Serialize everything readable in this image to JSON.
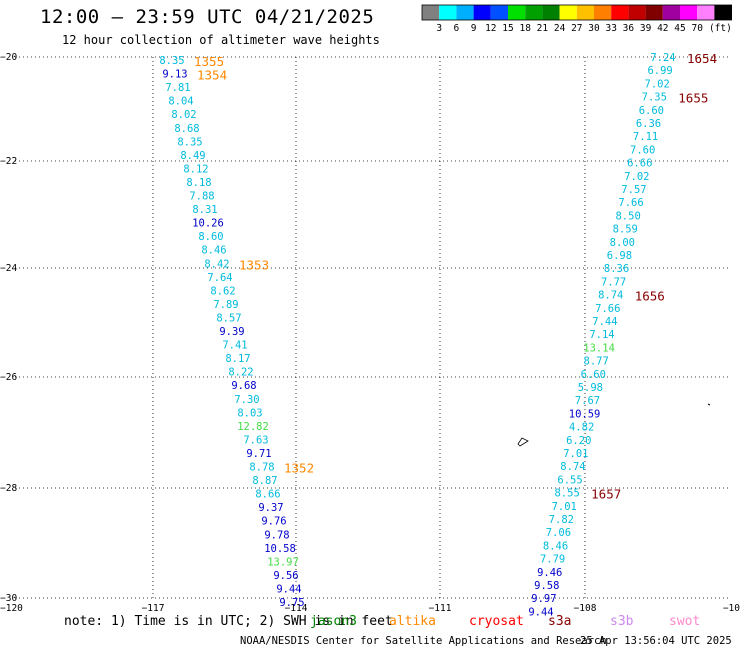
{
  "header": {
    "title": "12:00 — 23:59 UTC 04/21/2025",
    "subtitle": "12 hour collection of altimeter wave heights"
  },
  "colorbar": {
    "colors": [
      "#808080",
      "#00ffff",
      "#00b0ff",
      "#0000ff",
      "#0050ff",
      "#00e000",
      "#00a000",
      "#008000",
      "#ffff00",
      "#ffc000",
      "#ff8000",
      "#ff0000",
      "#c00000",
      "#800000",
      "#a000a0",
      "#ff00ff",
      "#ff80ff",
      "#000000"
    ],
    "labels": [
      "3",
      "6",
      "9",
      "12",
      "15",
      "18",
      "21",
      "24",
      "27",
      "30",
      "33",
      "36",
      "39",
      "42",
      "45",
      "70"
    ],
    "unit": "(ft)"
  },
  "axes": {
    "x_ticks": [
      "−120",
      "−117",
      "−114",
      "−111",
      "−108",
      "−10"
    ],
    "y_ticks": [
      "−20",
      "−22",
      "−24",
      "−26",
      "−28",
      "−30"
    ]
  },
  "colors": {
    "cyan": "#00bbdd",
    "blue": "#0000cc",
    "green": "#44dd44",
    "orange": "#ff8800",
    "darkred": "#880000"
  },
  "track_west": {
    "values": [
      {
        "v": "8.35",
        "c": "cyan"
      },
      {
        "v": "9.13",
        "c": "blue"
      },
      {
        "v": "7.81",
        "c": "cyan"
      },
      {
        "v": "8.04",
        "c": "cyan"
      },
      {
        "v": "8.02",
        "c": "cyan"
      },
      {
        "v": "8.68",
        "c": "cyan"
      },
      {
        "v": "8.35",
        "c": "cyan"
      },
      {
        "v": "8.49",
        "c": "cyan"
      },
      {
        "v": "8.12",
        "c": "cyan"
      },
      {
        "v": "8.18",
        "c": "cyan"
      },
      {
        "v": "7.88",
        "c": "cyan"
      },
      {
        "v": "8.31",
        "c": "cyan"
      },
      {
        "v": "10.26",
        "c": "blue"
      },
      {
        "v": "8.60",
        "c": "cyan"
      },
      {
        "v": "8.46",
        "c": "cyan"
      },
      {
        "v": "8.42",
        "c": "cyan"
      },
      {
        "v": "7.64",
        "c": "cyan"
      },
      {
        "v": "8.62",
        "c": "cyan"
      },
      {
        "v": "7.89",
        "c": "cyan"
      },
      {
        "v": "8.57",
        "c": "cyan"
      },
      {
        "v": "9.39",
        "c": "blue"
      },
      {
        "v": "7.41",
        "c": "cyan"
      },
      {
        "v": "8.17",
        "c": "cyan"
      },
      {
        "v": "8.22",
        "c": "cyan"
      },
      {
        "v": "9.68",
        "c": "blue"
      },
      {
        "v": "7.30",
        "c": "cyan"
      },
      {
        "v": "8.03",
        "c": "cyan"
      },
      {
        "v": "12.82",
        "c": "green"
      },
      {
        "v": "7.63",
        "c": "cyan"
      },
      {
        "v": "9.71",
        "c": "blue"
      },
      {
        "v": "8.78",
        "c": "cyan"
      },
      {
        "v": "8.87",
        "c": "cyan"
      },
      {
        "v": "8.66",
        "c": "cyan"
      },
      {
        "v": "9.37",
        "c": "blue"
      },
      {
        "v": "9.76",
        "c": "blue"
      },
      {
        "v": "9.78",
        "c": "blue"
      },
      {
        "v": "10.58",
        "c": "blue"
      },
      {
        "v": "13.97",
        "c": "green"
      },
      {
        "v": "9.56",
        "c": "blue"
      },
      {
        "v": "9.44",
        "c": "blue"
      },
      {
        "v": "9.75",
        "c": "blue"
      }
    ],
    "time_labels": [
      {
        "t": "1355",
        "c": "orange",
        "i": 0
      },
      {
        "t": "1354",
        "c": "orange",
        "i": 1
      },
      {
        "t": "1353",
        "c": "orange",
        "i": 15
      },
      {
        "t": "1352",
        "c": "orange",
        "i": 30
      }
    ]
  },
  "track_east": {
    "values": [
      {
        "v": "7.24",
        "c": "cyan"
      },
      {
        "v": "6.99",
        "c": "cyan"
      },
      {
        "v": "7.02",
        "c": "cyan"
      },
      {
        "v": "7.35",
        "c": "cyan"
      },
      {
        "v": "6.60",
        "c": "cyan"
      },
      {
        "v": "6.36",
        "c": "cyan"
      },
      {
        "v": "7.11",
        "c": "cyan"
      },
      {
        "v": "7.60",
        "c": "cyan"
      },
      {
        "v": "6.66",
        "c": "cyan"
      },
      {
        "v": "7.02",
        "c": "cyan"
      },
      {
        "v": "7.57",
        "c": "cyan"
      },
      {
        "v": "7.66",
        "c": "cyan"
      },
      {
        "v": "8.50",
        "c": "cyan"
      },
      {
        "v": "8.59",
        "c": "cyan"
      },
      {
        "v": "8.00",
        "c": "cyan"
      },
      {
        "v": "6.98",
        "c": "cyan"
      },
      {
        "v": "8.36",
        "c": "cyan"
      },
      {
        "v": "7.77",
        "c": "cyan"
      },
      {
        "v": "8.74",
        "c": "cyan"
      },
      {
        "v": "7.66",
        "c": "cyan"
      },
      {
        "v": "7.44",
        "c": "cyan"
      },
      {
        "v": "7.14",
        "c": "cyan"
      },
      {
        "v": "13.14",
        "c": "green"
      },
      {
        "v": "8.77",
        "c": "cyan"
      },
      {
        "v": "6.60",
        "c": "cyan"
      },
      {
        "v": "5.98",
        "c": "cyan"
      },
      {
        "v": "7.67",
        "c": "cyan"
      },
      {
        "v": "10.59",
        "c": "blue"
      },
      {
        "v": "4.82",
        "c": "cyan"
      },
      {
        "v": "6.20",
        "c": "cyan"
      },
      {
        "v": "7.01",
        "c": "cyan"
      },
      {
        "v": "8.74",
        "c": "cyan"
      },
      {
        "v": "6.55",
        "c": "cyan"
      },
      {
        "v": "8.55",
        "c": "cyan"
      },
      {
        "v": "7.01",
        "c": "cyan"
      },
      {
        "v": "7.82",
        "c": "cyan"
      },
      {
        "v": "7.06",
        "c": "cyan"
      },
      {
        "v": "8.46",
        "c": "cyan"
      },
      {
        "v": "7.79",
        "c": "cyan"
      },
      {
        "v": "9.46",
        "c": "blue"
      },
      {
        "v": "9.58",
        "c": "blue"
      },
      {
        "v": "9.97",
        "c": "blue"
      },
      {
        "v": "9.44",
        "c": "blue"
      }
    ],
    "time_labels": [
      {
        "t": "1654",
        "c": "darkred",
        "i": 0
      },
      {
        "t": "1655",
        "c": "darkred",
        "i": 3
      },
      {
        "t": "1656",
        "c": "darkred",
        "i": 18
      },
      {
        "t": "1657",
        "c": "darkred",
        "i": 33
      }
    ]
  },
  "footer": {
    "note": "note: 1) Time is in UTC; 2) SWH is in feet",
    "satellites": [
      {
        "name": "jason3",
        "color": "#008000"
      },
      {
        "name": "altika",
        "color": "#ff8800"
      },
      {
        "name": "cryosat",
        "color": "#ff0000"
      },
      {
        "name": "s3a",
        "color": "#880000"
      },
      {
        "name": "s3b",
        "color": "#cc88ee"
      },
      {
        "name": "swot",
        "color": "#ff88cc"
      }
    ],
    "credit": "NOAA/NESDIS Center for Satellite Applications and Research",
    "timestamp": "25 Apr 13:56:04 UTC 2025"
  }
}
